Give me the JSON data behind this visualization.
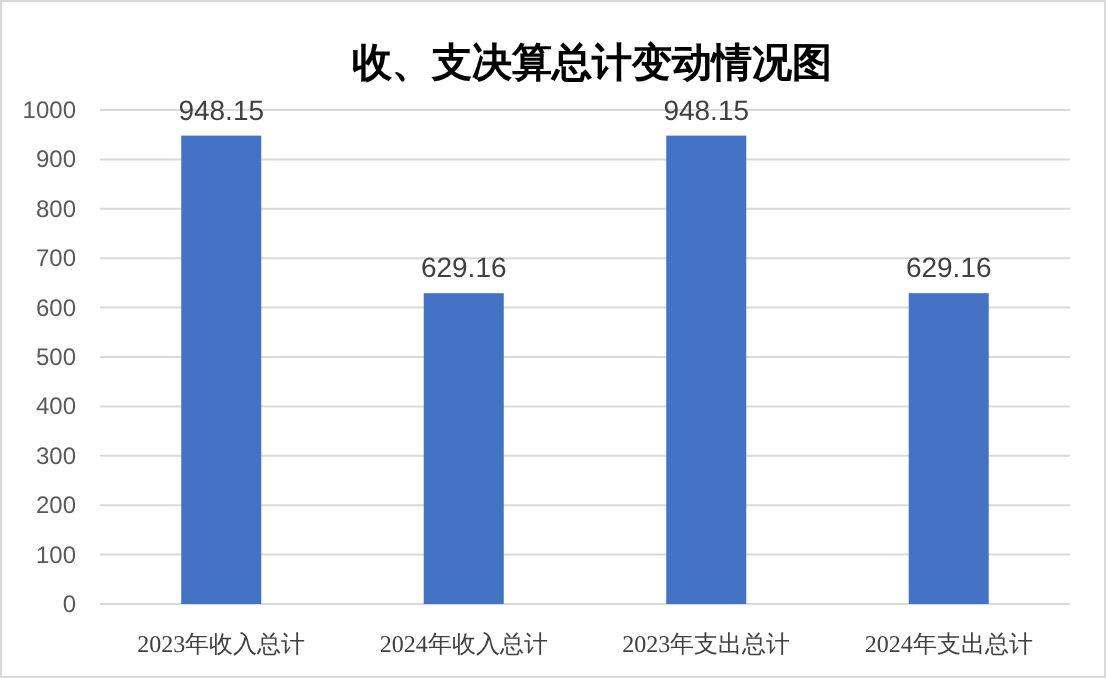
{
  "chart_data": {
    "type": "bar",
    "title": "收、支决算总计变动情况图",
    "categories": [
      "2023年收入总计",
      "2024年收入总计",
      "2023年支出总计",
      "2024年支出总计"
    ],
    "values": [
      948.15,
      629.16,
      948.15,
      629.16
    ],
    "color": "#4472c4",
    "ylim": [
      0,
      1000
    ],
    "yticks": [
      0,
      100,
      200,
      300,
      400,
      500,
      600,
      700,
      800,
      900,
      1000
    ],
    "grid": "y",
    "data_labels": true
  }
}
